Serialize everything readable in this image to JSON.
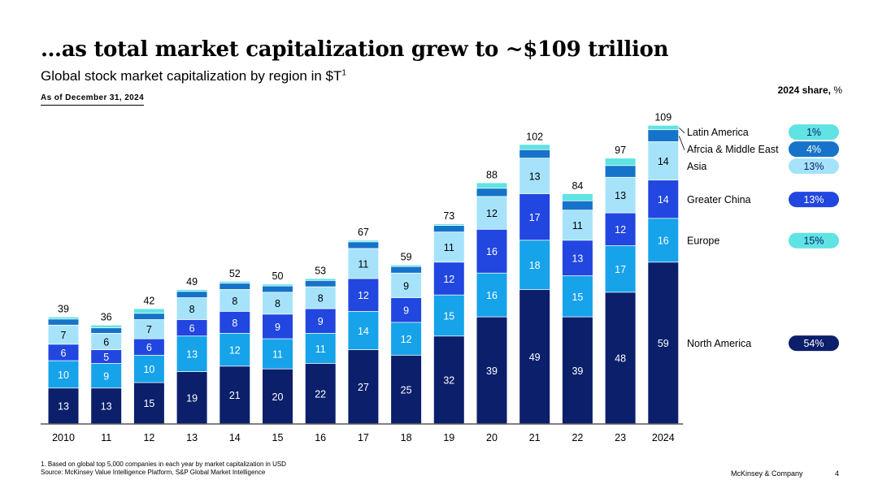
{
  "header": {
    "title": "…as total market capitalization grew to ~$109 trillion",
    "subtitle": "Global stock market capitalization by region in $T",
    "subtitle_footnote": "1",
    "as_of": "As of December 31, 2024",
    "share_title_bold": "2024 share,",
    "share_title_unit": " %"
  },
  "chart_data": {
    "type": "bar",
    "stacked": true,
    "categories": [
      "2010",
      "11",
      "12",
      "13",
      "14",
      "15",
      "16",
      "17",
      "18",
      "19",
      "20",
      "21",
      "22",
      "23",
      "2024"
    ],
    "totals": [
      39,
      36,
      42,
      49,
      52,
      50,
      53,
      67,
      59,
      73,
      88,
      102,
      84,
      97,
      109
    ],
    "series": [
      {
        "name": "North America",
        "color": "#0b1f6b",
        "labeled": true,
        "label_color": "#ffffff",
        "values": [
          13,
          13,
          15,
          19,
          21,
          20,
          22,
          27,
          25,
          32,
          39,
          49,
          39,
          48,
          59
        ]
      },
      {
        "name": "Europe",
        "color": "#16a3ea",
        "labeled": true,
        "label_color": "#ffffff",
        "values": [
          10,
          9,
          10,
          13,
          12,
          11,
          11,
          14,
          12,
          15,
          16,
          18,
          15,
          17,
          16
        ]
      },
      {
        "name": "Greater China",
        "color": "#2246e0",
        "labeled": true,
        "label_color": "#ffffff",
        "values": [
          6,
          5,
          6,
          6,
          8,
          9,
          9,
          12,
          9,
          12,
          16,
          17,
          13,
          12,
          14
        ]
      },
      {
        "name": "Asia",
        "color": "#a6e3fb",
        "labeled": true,
        "label_color": "#000000",
        "values": [
          7,
          6,
          7,
          8,
          8,
          8,
          8,
          11,
          9,
          11,
          12,
          13,
          11,
          13,
          14
        ]
      },
      {
        "name": "Afrcia & Middle East",
        "color": "#1573c9",
        "labeled": false,
        "values": [
          2.2,
          2,
          2.3,
          2.3,
          2.3,
          2.3,
          2.3,
          2.4,
          2.4,
          2.4,
          3,
          3.1,
          3.4,
          4.3,
          4.4
        ]
      },
      {
        "name": "Latin America",
        "color": "#5fe3e3",
        "labeled": false,
        "values": [
          0.8,
          1,
          1.7,
          0.7,
          0.7,
          0.7,
          0.7,
          0.6,
          0.6,
          0.6,
          2,
          1.9,
          2.6,
          2.7,
          1.6
        ]
      }
    ],
    "share_2024": [
      {
        "series": "North America",
        "label": "54%",
        "color": "#0b1f6b",
        "text_color": "#ffffff"
      },
      {
        "series": "Europe",
        "label": "15%",
        "color": "#5fe3e3",
        "text_color": "#0b1f6b"
      },
      {
        "series": "Greater China",
        "label": "13%",
        "color": "#2246e0",
        "text_color": "#ffffff"
      },
      {
        "series": "Asia",
        "label": "13%",
        "color": "#a6e3fb",
        "text_color": "#0b1f6b"
      },
      {
        "series": "Afrcia & Middle East",
        "label": "4%",
        "color": "#1573c9",
        "text_color": "#ffffff"
      },
      {
        "series": "Latin America",
        "label": "1%",
        "color": "#5fe3e3",
        "text_color": "#0b1f6b"
      }
    ],
    "ylim": [
      0,
      112
    ],
    "legend_position": "right"
  },
  "footer": {
    "note": "1. Based on global top 5,000 companies in each year by market capitalization in USD",
    "source": "Source: McKinsey Value Intelligence Platform, S&P Global Market Intelligence",
    "brand": "McKinsey & Company",
    "page": "4"
  }
}
